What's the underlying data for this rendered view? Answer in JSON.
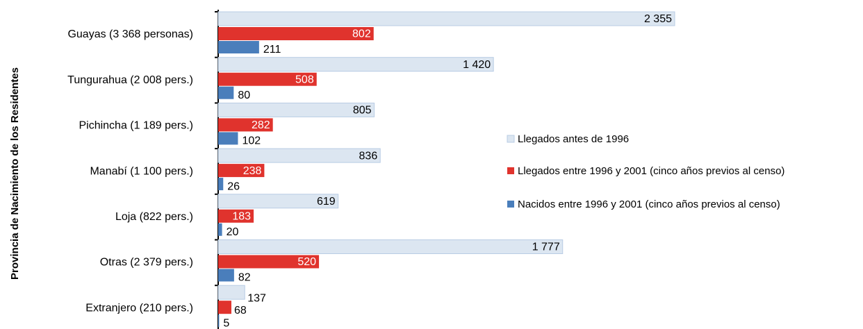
{
  "chart_data": {
    "type": "bar",
    "orientation": "horizontal",
    "y_axis_label": "Provincia de Nacimiento de los Residentes",
    "categories": [
      "Guayas (3 368 personas)",
      "Tungurahua (2 008 pers.)",
      "Pichincha (1 189 pers.)",
      "Manabí (1 100 pers.)",
      "Loja (822 pers.)",
      "Otras  (2 379 pers.)",
      "Extranjero (210 pers.)"
    ],
    "series": [
      {
        "name": "Llegados antes de 1996",
        "color": "#dce6f1",
        "values": [
          2355,
          1420,
          805,
          836,
          619,
          1777,
          137
        ],
        "value_labels": [
          "2 355",
          "1 420",
          "805",
          "836",
          "619",
          "1 777",
          "137"
        ]
      },
      {
        "name": "Llegados entre 1996 y 2001 (cinco años previos al censo)",
        "color": "#e0332d",
        "values": [
          802,
          508,
          282,
          238,
          183,
          520,
          68
        ]
      },
      {
        "name": "Nacidos entre 1996 y 2001 (cinco años previos al censo)",
        "color": "#4a7ebb",
        "values": [
          211,
          80,
          102,
          26,
          20,
          82,
          5
        ]
      }
    ],
    "legend": "right"
  }
}
